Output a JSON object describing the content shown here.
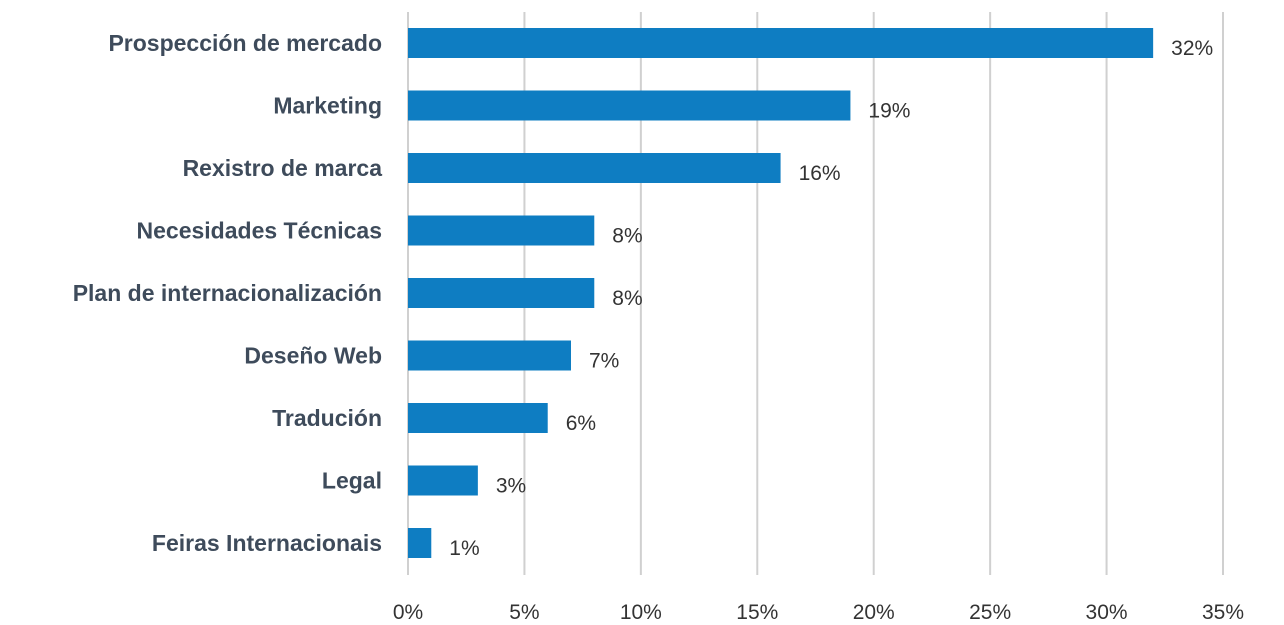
{
  "chart_data": {
    "type": "bar",
    "orientation": "horizontal",
    "title": "",
    "xlabel": "",
    "ylabel": "",
    "categories": [
      "Prospección de mercado",
      "Marketing",
      "Rexistro de marca",
      "Necesidades Técnicas",
      "Plan de internacionalización",
      "Deseño Web",
      "Tradución",
      "Legal",
      "Feiras Internacionais"
    ],
    "values": [
      32,
      19,
      16,
      8,
      8,
      7,
      6,
      3,
      1
    ],
    "data_labels": [
      "32%",
      "19%",
      "16%",
      "8%",
      "8%",
      "7%",
      "6%",
      "3%",
      "1%"
    ],
    "xlim": [
      0,
      35
    ],
    "x_ticks": [
      0,
      5,
      10,
      15,
      20,
      25,
      30,
      35
    ],
    "x_tick_labels": [
      "0%",
      "5%",
      "10%",
      "15%",
      "20%",
      "25%",
      "30%",
      "35%"
    ],
    "grid": "vertical",
    "legend": "none",
    "colors": {
      "bar": "#0e7dc2",
      "category_text": "#3e4b5b",
      "value_text": "#333333",
      "grid": "#d0d0d0"
    }
  }
}
